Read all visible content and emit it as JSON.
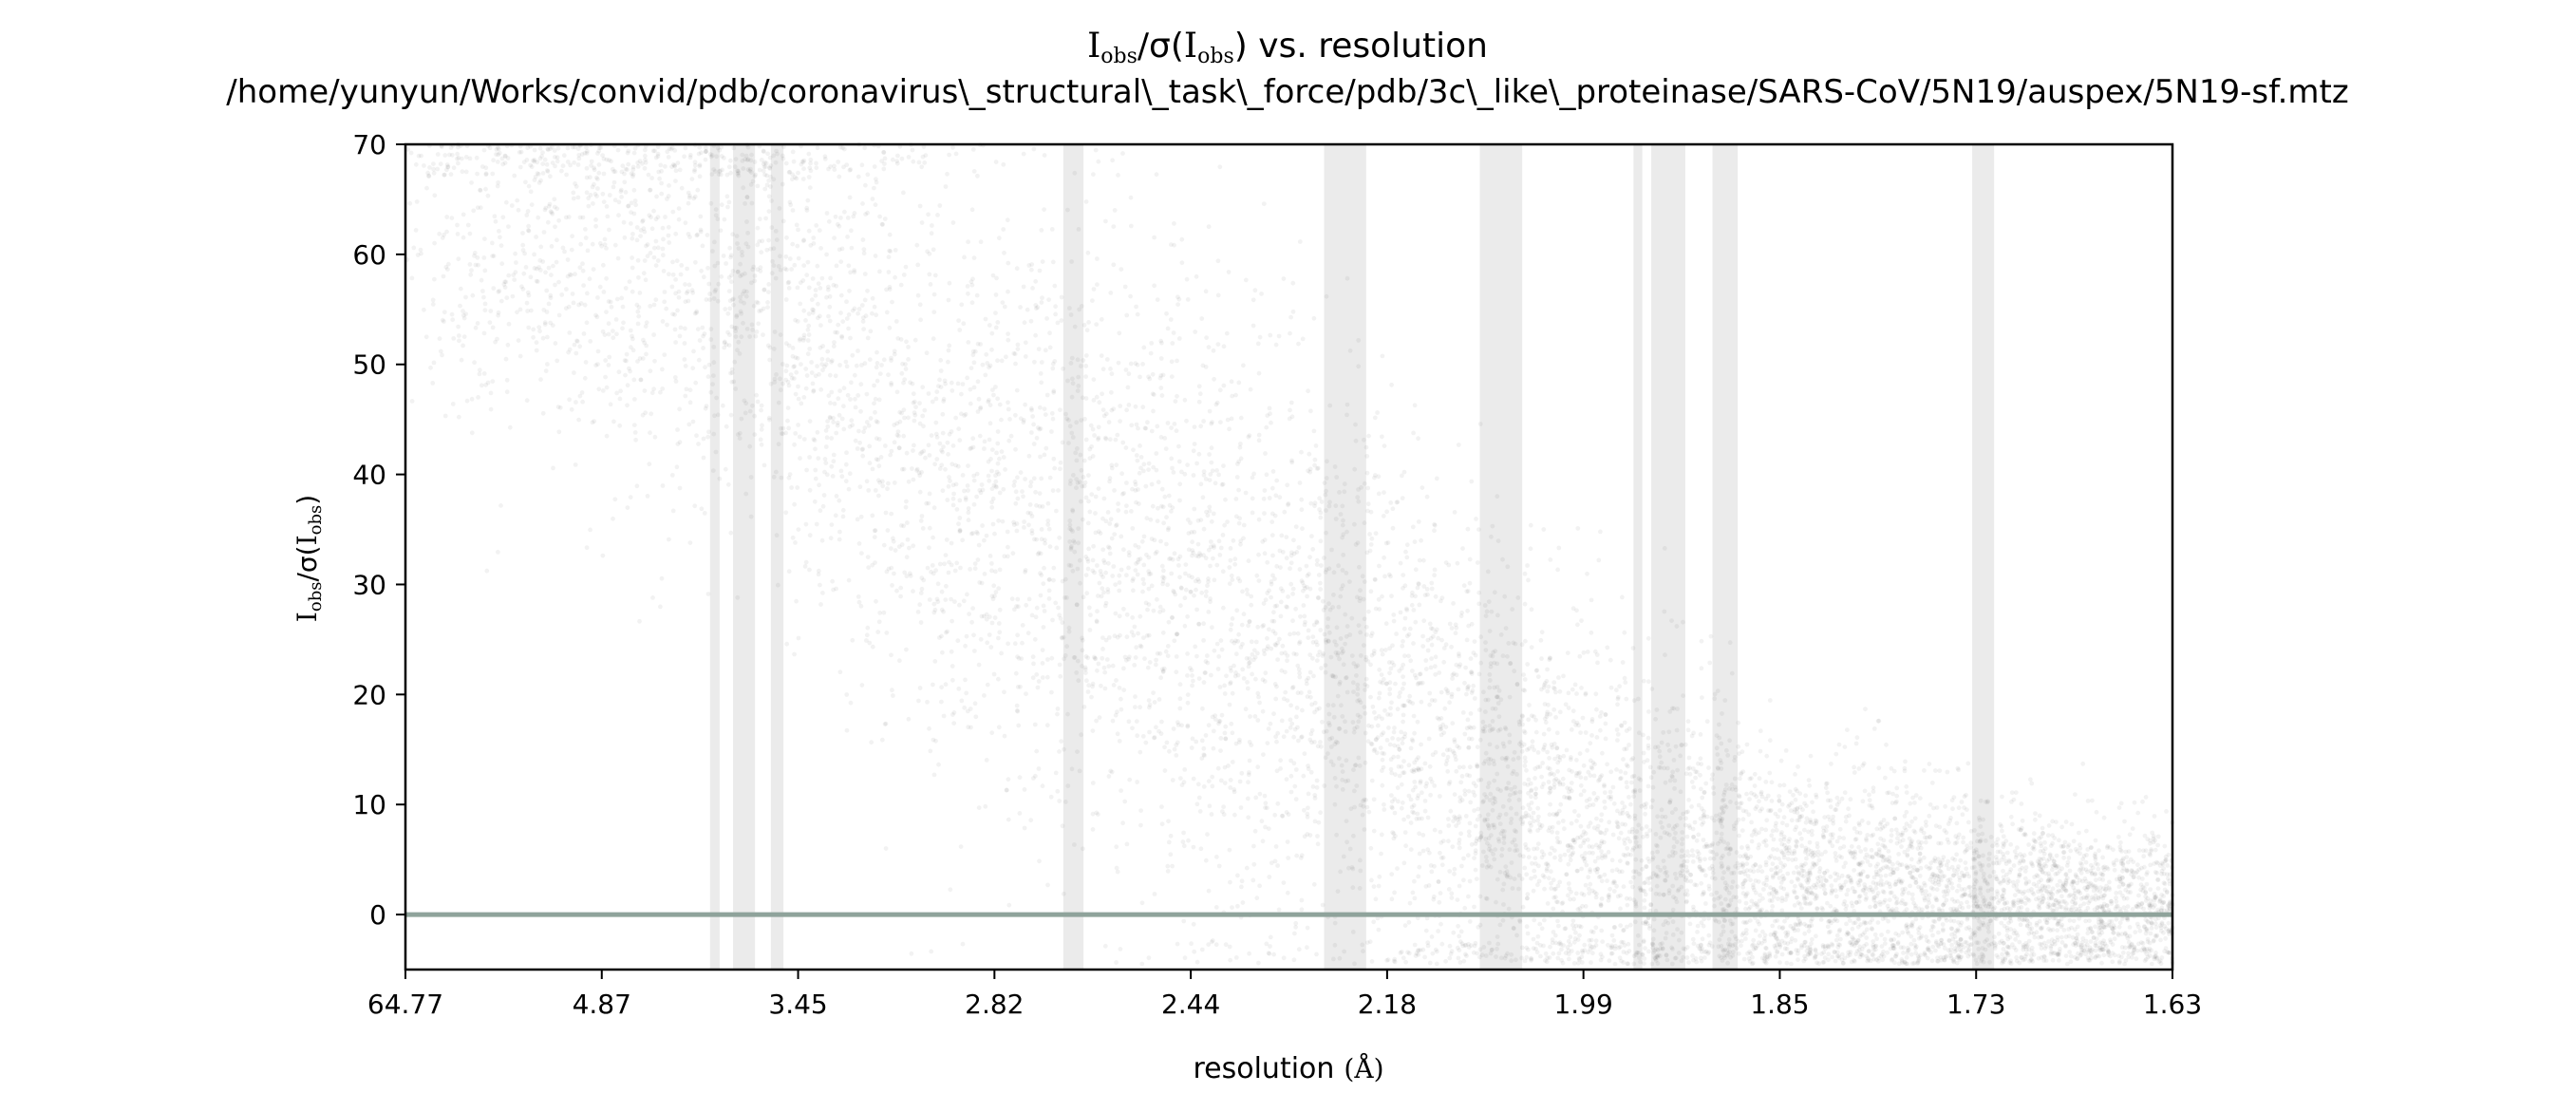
{
  "chart_data": {
    "type": "scatter",
    "title_prefix_main": "I",
    "title_prefix_sub": "obs",
    "title_mid": "/σ(",
    "title_mid_main": "I",
    "title_mid_sub": "obs",
    "title_suffix": ") vs. resolution",
    "subtitle": "/home/yunyun/Works/convid/pdb/coronavirus\\_structural\\_task\\_force/pdb/3c\\_like\\_proteinase/SARS-CoV/5N19/auspex/5N19-sf.mtz",
    "xlabel": "resolution",
    "xlabel_unit": "(Å)",
    "ylabel_main": "I",
    "ylabel_sub": "obs",
    "ylabel_mid": "/σ(",
    "ylabel_main2": "I",
    "ylabel_sub2": "obs",
    "ylabel_end": ")",
    "x_axis_scale": "reciprocal-squared resolution (1/d²), labelled in Å",
    "x_tick_labels": [
      "64.77",
      "4.87",
      "3.45",
      "2.82",
      "2.44",
      "2.18",
      "1.99",
      "1.85",
      "1.73",
      "1.63"
    ],
    "y_ticks": [
      0,
      10,
      20,
      30,
      40,
      50,
      60,
      70
    ],
    "ylim": [
      -5,
      70
    ],
    "grid": false,
    "reference_line": {
      "y": 0,
      "color": "#8fa39b"
    },
    "ice_ring_bands_resolution_A": [
      [
        3.92,
        3.86
      ],
      [
        3.78,
        3.66
      ],
      [
        3.58,
        3.52
      ],
      [
        2.67,
        2.63
      ],
      [
        2.26,
        2.21
      ],
      [
        2.09,
        2.05
      ],
      [
        1.955,
        1.948
      ],
      [
        1.941,
        1.915
      ],
      [
        1.895,
        1.877
      ],
      [
        1.731,
        1.719
      ]
    ],
    "band_color": "#ebebeb",
    "point_color": "#000000",
    "point_opacity": 0.05,
    "density_profile": [
      {
        "resolution": 5.5,
        "center": 62,
        "spread": 9
      },
      {
        "resolution": 3.6,
        "center": 58,
        "spread": 12
      },
      {
        "resolution": 2.82,
        "center": 38,
        "spread": 15
      },
      {
        "resolution": 2.44,
        "center": 30,
        "spread": 15
      },
      {
        "resolution": 2.18,
        "center": 18,
        "spread": 13
      },
      {
        "resolution": 1.99,
        "center": 7,
        "spread": 9
      },
      {
        "resolution": 1.85,
        "center": 3,
        "spread": 6
      },
      {
        "resolution": 1.73,
        "center": 1.5,
        "spread": 4.5
      },
      {
        "resolution": 1.63,
        "center": 0.5,
        "spread": 3.5
      }
    ]
  }
}
